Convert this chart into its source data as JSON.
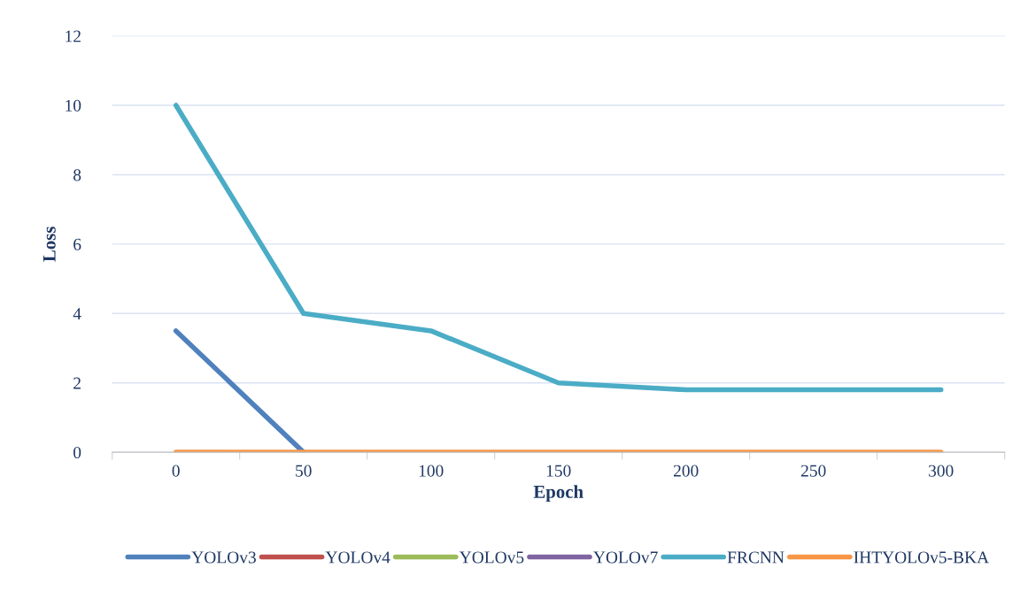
{
  "chart_data": {
    "type": "line",
    "xlabel": "Epoch",
    "ylabel": "Loss",
    "categories": [
      "0",
      "50",
      "100",
      "150",
      "200",
      "250",
      "300"
    ],
    "series": [
      {
        "name": "YOLOv3",
        "color": "#4f81bd",
        "values": [
          3.5,
          0,
          null,
          null,
          null,
          null,
          null
        ]
      },
      {
        "name": "YOLOv4",
        "color": "#c0504d",
        "values": [
          null,
          null,
          null,
          null,
          null,
          null,
          null
        ]
      },
      {
        "name": "YOLOv5",
        "color": "#9bbb59",
        "values": [
          null,
          null,
          null,
          null,
          null,
          null,
          null
        ]
      },
      {
        "name": "YOLOv7",
        "color": "#8064a2",
        "values": [
          null,
          null,
          null,
          null,
          null,
          null,
          null
        ]
      },
      {
        "name": "FRCNN",
        "color": "#4bacc6",
        "values": [
          10,
          4,
          3.5,
          2,
          1.8,
          1.8,
          1.8
        ]
      },
      {
        "name": "IHTYOLOv5-BKA",
        "color": "#f79646",
        "values": [
          0,
          0,
          0,
          0,
          0,
          0,
          0
        ]
      }
    ],
    "ylim": [
      0,
      12
    ],
    "yticks": [
      0,
      2,
      4,
      6,
      8,
      10,
      12
    ],
    "grid": "y",
    "legend": "bottom",
    "marker": "none",
    "line_style": "solid"
  }
}
